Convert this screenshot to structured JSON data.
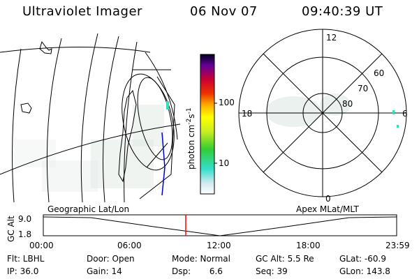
{
  "header": {
    "instrument": "Ultraviolet Imager",
    "date": "06 Nov 07",
    "time": "09:40:39 UT"
  },
  "colorbar": {
    "unit_label": "photon cm",
    "unit_exp1": "-2",
    "unit_s": "s",
    "unit_exp2": "-1",
    "tick_100": "100",
    "tick_10": "10"
  },
  "polar": {
    "labels_lat": [
      "60",
      "70",
      "80"
    ],
    "labels_mlt": {
      "top": "12",
      "left": "18",
      "right": "6",
      "bottom": "0"
    }
  },
  "panel_labels": {
    "left": "Geographic Lat/Lon",
    "right": "Apex MLat/MLT"
  },
  "alt_plot": {
    "ylabel": "GC Alt",
    "yticks": [
      "9.0",
      "1.8"
    ],
    "xticks": [
      "00:00",
      "06:00",
      "12:00",
      "18:00",
      "23:59"
    ],
    "current_time_marker": "09:40"
  },
  "status": {
    "flt": "Flt: LBHL",
    "ip": "IP: 36.0",
    "door": "Door: Open",
    "gain": "Gain: 14",
    "mode": "Mode: Normal",
    "dsp": "Dsp:       6.6",
    "gcalt": "GC Alt: 5.5 Re",
    "seq": "Seq: 39",
    "glat": "GLat: -60.9",
    "glon": "GLon: 143.8"
  },
  "colors": {
    "marker": "#ff0000",
    "line": "#000000",
    "trace": "#0000cc"
  }
}
